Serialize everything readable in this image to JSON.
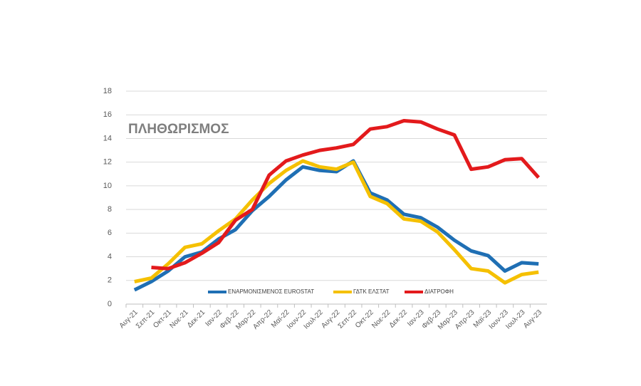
{
  "chart_data": {
    "type": "line",
    "title": "ΠΛΗΘΩΡΙΣΜΟΣ",
    "categories": [
      "Αυγ-21",
      "Σεπ-21",
      "Οκτ-21",
      "Νοε-21",
      "Δεκ-21",
      "Ιαν-22",
      "Φεβ-22",
      "Μαρ-22",
      "Απρ-22",
      "Μαϊ-22",
      "Ιουν-22",
      "Ιουλ-22",
      "Αυγ-22",
      "Σεπ-22",
      "Οκτ-22",
      "Νοε-22",
      "Δεκ-22",
      "Ιαν-23",
      "Φεβ-23",
      "Μαρ-23",
      "Απρ-23",
      "Μαϊ-23",
      "Ιουν-23",
      "Ιουλ-23",
      "Αυγ-23"
    ],
    "series": [
      {
        "name": "ΕΝΑΡΜΟΝΙΣΜΕΝΟΣ EUROSTAT",
        "color": "#1f6fb4",
        "values": [
          1.2,
          1.9,
          2.8,
          4.0,
          4.4,
          5.5,
          6.3,
          7.9,
          9.1,
          10.5,
          11.6,
          11.3,
          11.2,
          12.1,
          9.4,
          8.8,
          7.6,
          7.3,
          6.5,
          5.4,
          4.5,
          4.1,
          2.8,
          3.5,
          3.4
        ]
      },
      {
        "name": "ΓΔΤΚ ΕΛΣΤΑΤ",
        "color": "#f5c000",
        "values": [
          1.9,
          2.2,
          3.4,
          4.8,
          5.1,
          6.2,
          7.2,
          8.8,
          10.2,
          11.3,
          12.1,
          11.6,
          11.4,
          12.0,
          9.1,
          8.5,
          7.2,
          7.0,
          6.1,
          4.6,
          3.0,
          2.8,
          1.8,
          2.5,
          2.7
        ]
      },
      {
        "name": "ΔΙΑΤΡΟΦΗ",
        "color": "#e31a1c",
        "values": [
          null,
          3.1,
          3.0,
          3.5,
          4.3,
          5.2,
          7.1,
          8.0,
          10.9,
          12.1,
          12.6,
          13.0,
          13.2,
          13.5,
          14.8,
          15.0,
          15.5,
          15.4,
          14.8,
          14.3,
          11.4,
          11.6,
          12.2,
          12.3,
          10.7
        ]
      }
    ],
    "ylim": [
      0,
      18
    ],
    "yticks": [
      0,
      2,
      4,
      6,
      8,
      10,
      12,
      14,
      16,
      18
    ],
    "grid": true
  }
}
